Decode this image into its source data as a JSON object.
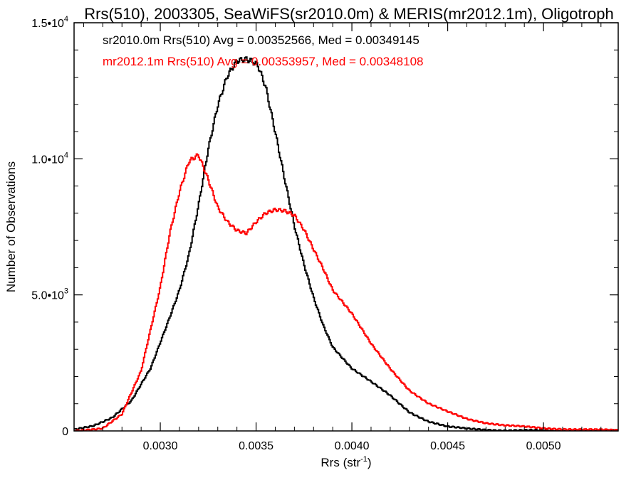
{
  "chart_data": {
    "type": "line",
    "title": "Rrs(510), 2003305, SeaWiFS(sr2010.0m) & MERIS(mr2012.1m), Oligotroph",
    "xlabel": "Rrs (str",
    "xlabel_sup": "-1",
    "xlabel_end": ")",
    "ylabel": "Number of Observations",
    "xlim": [
      0.00255,
      0.00539
    ],
    "ylim": [
      0,
      15000
    ],
    "xticks": [
      {
        "value": 0.003,
        "label": "0.0030"
      },
      {
        "value": 0.0035,
        "label": "0.0035"
      },
      {
        "value": 0.004,
        "label": "0.0040"
      },
      {
        "value": 0.0045,
        "label": "0.0045"
      },
      {
        "value": 0.005,
        "label": "0.0050"
      }
    ],
    "yticks": [
      {
        "value": 0,
        "label": "0",
        "sup": ""
      },
      {
        "value": 5000,
        "label": "5.0•10",
        "sup": "3"
      },
      {
        "value": 10000,
        "label": "1.0•10",
        "sup": "4"
      },
      {
        "value": 15000,
        "label": "1.5•10",
        "sup": "4"
      }
    ],
    "series": [
      {
        "name": "sr2010.0m",
        "color": "#000000",
        "legend": "sr2010.0m Rrs(510) Avg = 0.00352566, Med = 0.00349145",
        "x": [
          0.00255,
          0.00265,
          0.00275,
          0.00285,
          0.00295,
          0.00305,
          0.0031,
          0.00315,
          0.0032,
          0.00325,
          0.0033,
          0.00335,
          0.0034,
          0.00345,
          0.00348,
          0.00351,
          0.00355,
          0.0036,
          0.00365,
          0.0037,
          0.00375,
          0.0038,
          0.00385,
          0.0039,
          0.004,
          0.0041,
          0.0042,
          0.0043,
          0.0044,
          0.0045,
          0.0046,
          0.0048,
          0.005,
          0.00539
        ],
        "y": [
          50,
          200,
          500,
          1100,
          2300,
          4200,
          5200,
          6500,
          8300,
          10300,
          11900,
          13000,
          13600,
          13700,
          13650,
          13500,
          12700,
          11000,
          9200,
          7500,
          6100,
          4900,
          3900,
          3100,
          2300,
          1800,
          1300,
          700,
          350,
          150,
          80,
          20,
          10,
          5
        ]
      },
      {
        "name": "mr2012.1m",
        "color": "#ff0000",
        "legend": "mr2012.1m Rrs(510) Avg = 0.00353957, Med = 0.00348108",
        "x": [
          0.00255,
          0.0027,
          0.0028,
          0.0029,
          0.003,
          0.00305,
          0.0031,
          0.00315,
          0.0032,
          0.00325,
          0.0033,
          0.00335,
          0.0034,
          0.00345,
          0.0035,
          0.00355,
          0.0036,
          0.00365,
          0.0037,
          0.00375,
          0.0038,
          0.00385,
          0.0039,
          0.004,
          0.0041,
          0.0042,
          0.0043,
          0.0044,
          0.0045,
          0.0046,
          0.0047,
          0.0048,
          0.005,
          0.0052,
          0.00539
        ],
        "y": [
          10,
          100,
          600,
          2200,
          5300,
          7300,
          8800,
          9900,
          10100,
          9200,
          8200,
          7700,
          7400,
          7300,
          7700,
          8000,
          8100,
          8050,
          7900,
          7400,
          6700,
          6000,
          5200,
          4300,
          3200,
          2300,
          1500,
          1000,
          700,
          450,
          300,
          200,
          100,
          50,
          20
        ]
      }
    ]
  }
}
